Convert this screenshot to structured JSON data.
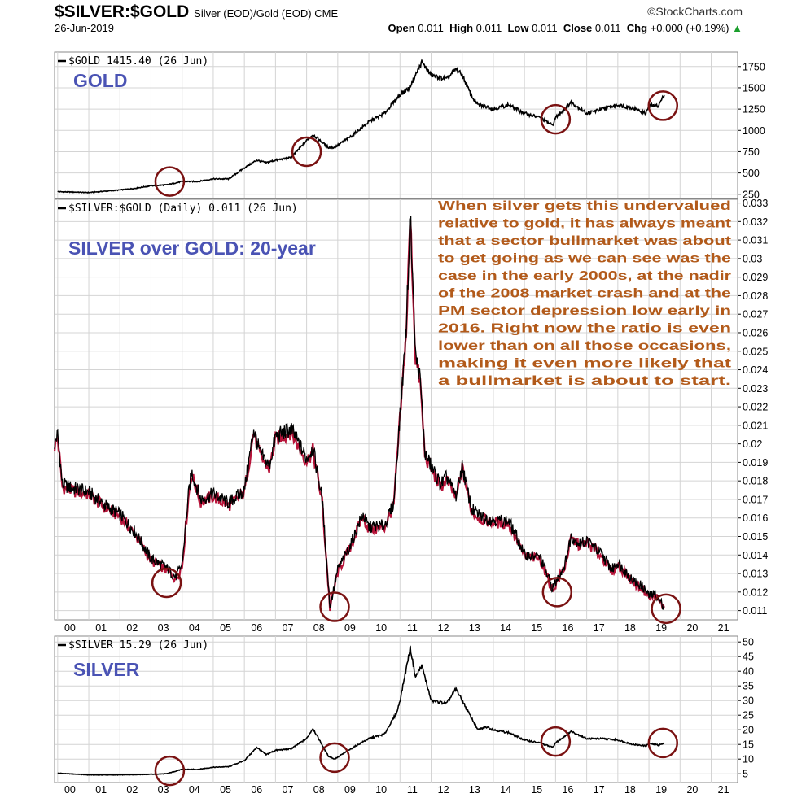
{
  "header": {
    "symbol": "$SILVER:$GOLD",
    "description": "Silver (EOD)/Gold (EOD) CME",
    "date": "26-Jun-2019",
    "brand": "©StockCharts.com",
    "ohlc": {
      "open_label": "Open",
      "open": "0.011",
      "high_label": "High",
      "high": "0.011",
      "low_label": "Low",
      "low": "0.011",
      "close_label": "Close",
      "close": "0.011",
      "chg_label": "Chg",
      "chg": "+0.000 (+0.19%)",
      "chg_icon": "triangle-up-icon"
    }
  },
  "colors": {
    "line": "#000000",
    "down": "#b8143a",
    "circle": "#7a1212",
    "label": "#4a53b4",
    "annotation": "#b25a1a",
    "grid": "#d4d4d4"
  },
  "chart_data": [
    {
      "type": "line",
      "legend": "$GOLD 1415.40 (26 Jun)",
      "label": "GOLD",
      "ylim": [
        200,
        1920
      ],
      "y_ticks": [
        250,
        500,
        750,
        1000,
        1250,
        1500,
        1750
      ],
      "x": [
        2000,
        2001,
        2002,
        2002.5,
        2003,
        2003.5,
        2004,
        2004.5,
        2005,
        2005.5,
        2006,
        2006.4,
        2006.7,
        2007,
        2007.5,
        2008,
        2008.2,
        2008.7,
        2008.9,
        2009.5,
        2010,
        2010.5,
        2011,
        2011.3,
        2011.7,
        2012,
        2012.5,
        2012.8,
        2013,
        2013.3,
        2013.5,
        2013.8,
        2014,
        2014.5,
        2015,
        2015.5,
        2015.9,
        2016,
        2016.5,
        2017,
        2017.5,
        2018,
        2018.5,
        2018.9,
        2019,
        2019.3,
        2019.49
      ],
      "values": [
        280,
        270,
        300,
        320,
        350,
        360,
        400,
        400,
        430,
        430,
        560,
        650,
        620,
        650,
        680,
        880,
        950,
        800,
        800,
        950,
        1100,
        1200,
        1420,
        1500,
        1800,
        1650,
        1600,
        1720,
        1650,
        1400,
        1300,
        1280,
        1250,
        1300,
        1200,
        1150,
        1060,
        1150,
        1330,
        1200,
        1250,
        1300,
        1260,
        1200,
        1290,
        1290,
        1415.4
      ],
      "circles": [
        {
          "x": 2003.6,
          "y": 400
        },
        {
          "x": 2008.0,
          "y": 750
        },
        {
          "x": 2016.0,
          "y": 1130
        },
        {
          "x": 2019.45,
          "y": 1290
        }
      ]
    },
    {
      "type": "line",
      "legend": "$SILVER:$GOLD (Daily) 0.011 (26 Jun)",
      "label": "SILVER over GOLD: 20-year",
      "ylim": [
        0.0105,
        0.0332
      ],
      "y_ticks": [
        0.011,
        0.012,
        0.013,
        0.014,
        0.015,
        0.016,
        0.017,
        0.018,
        0.019,
        0.02,
        0.021,
        0.022,
        0.023,
        0.024,
        0.025,
        0.026,
        0.027,
        0.028,
        0.029,
        0.03,
        0.031,
        0.032,
        0.033
      ],
      "x": [
        1999.9,
        2000.0,
        2000.15,
        2000.5,
        2001,
        2001.5,
        2002,
        2002.5,
        2003,
        2003.5,
        2003.8,
        2004.0,
        2004.2,
        2004.3,
        2004.6,
        2005,
        2005.5,
        2006,
        2006.3,
        2006.5,
        2006.8,
        2007,
        2007.5,
        2008,
        2008.2,
        2008.5,
        2008.75,
        2008.9,
        2009,
        2009.4,
        2009.8,
        2010,
        2010.5,
        2010.8,
        2011,
        2011.2,
        2011.33,
        2011.5,
        2011.65,
        2011.8,
        2012,
        2012.3,
        2012.5,
        2012.8,
        2013,
        2013.3,
        2013.5,
        2013.7,
        2014,
        2014.5,
        2014.8,
        2015,
        2015.5,
        2015.9,
        2016.0,
        2016.3,
        2016.5,
        2016.8,
        2017,
        2017.5,
        2017.8,
        2018,
        2018.5,
        2018.8,
        2019,
        2019.2,
        2019.49
      ],
      "values": [
        0.02,
        0.0205,
        0.0178,
        0.0176,
        0.0174,
        0.0167,
        0.0162,
        0.0152,
        0.0138,
        0.0133,
        0.0128,
        0.0135,
        0.0172,
        0.0185,
        0.017,
        0.0173,
        0.0168,
        0.0175,
        0.0208,
        0.0195,
        0.0188,
        0.0204,
        0.0208,
        0.0192,
        0.0198,
        0.017,
        0.0112,
        0.0124,
        0.0132,
        0.0145,
        0.0162,
        0.0155,
        0.0156,
        0.0168,
        0.0215,
        0.0262,
        0.0325,
        0.0248,
        0.0235,
        0.0195,
        0.0188,
        0.0178,
        0.0182,
        0.0172,
        0.0188,
        0.0165,
        0.0162,
        0.016,
        0.0159,
        0.0158,
        0.0148,
        0.014,
        0.0139,
        0.0122,
        0.0125,
        0.0135,
        0.015,
        0.0146,
        0.0148,
        0.014,
        0.0132,
        0.0136,
        0.0126,
        0.0123,
        0.0118,
        0.0119,
        0.0112
      ],
      "circles": [
        {
          "x": 2003.5,
          "y": 0.0125
        },
        {
          "x": 2008.9,
          "y": 0.0112
        },
        {
          "x": 2016.05,
          "y": 0.012
        },
        {
          "x": 2019.55,
          "y": 0.0111
        }
      ],
      "annotation": [
        "When silver gets this undervalued",
        "relative to gold, it has always meant",
        "that a sector bullmarket was about",
        "to get going as we can see was the",
        "case in the early 2000s, at the nadir",
        "of the 2008 market crash and at the",
        "PM sector depression low early in",
        "2016. Right now the ratio is even",
        "lower than on all those occasions,",
        "making it even more likely that",
        "a bullmarket is about to start."
      ]
    },
    {
      "type": "line",
      "legend": "$SILVER 15.29 (26 Jun)",
      "label": "SILVER",
      "ylim": [
        2,
        52
      ],
      "y_ticks": [
        5,
        10,
        15,
        20,
        25,
        30,
        35,
        40,
        45,
        50
      ],
      "x": [
        2000,
        2001,
        2002,
        2003,
        2003.5,
        2004,
        2004.5,
        2005,
        2005.5,
        2006,
        2006.4,
        2006.7,
        2007,
        2007.5,
        2008,
        2008.2,
        2008.7,
        2008.9,
        2009.5,
        2010,
        2010.5,
        2010.9,
        2011,
        2011.33,
        2011.5,
        2011.7,
        2012,
        2012.5,
        2012.8,
        2013,
        2013.3,
        2013.5,
        2013.8,
        2014,
        2014.5,
        2015,
        2015.5,
        2015.9,
        2016,
        2016.5,
        2017,
        2017.5,
        2018,
        2018.5,
        2018.9,
        2019,
        2019.3,
        2019.49
      ],
      "values": [
        5.2,
        4.6,
        4.6,
        4.8,
        5.0,
        6.5,
        6.5,
        7.2,
        7.4,
        9.5,
        14.0,
        11.5,
        13.0,
        13.5,
        17.0,
        20.5,
        11.0,
        10.0,
        14.0,
        17.0,
        18.5,
        26.0,
        30.0,
        48.0,
        38.0,
        42.0,
        30.0,
        29.0,
        34.0,
        30.0,
        24.0,
        20.0,
        21.0,
        20.0,
        19.0,
        16.5,
        15.5,
        14.0,
        15.5,
        19.5,
        17.0,
        17.0,
        16.5,
        15.0,
        14.5,
        15.3,
        14.8,
        15.29
      ],
      "circles": [
        {
          "x": 2003.6,
          "y": 6.0
        },
        {
          "x": 2008.9,
          "y": 10.5
        },
        {
          "x": 2016.0,
          "y": 16.0
        },
        {
          "x": 2019.45,
          "y": 15.5
        }
      ]
    }
  ],
  "x_axis": {
    "labels": [
      "00",
      "01",
      "02",
      "03",
      "04",
      "05",
      "06",
      "07",
      "08",
      "09",
      "10",
      "11",
      "12",
      "13",
      "14",
      "15",
      "16",
      "17",
      "18",
      "19",
      "20",
      "21"
    ],
    "xlim": [
      1999.9,
      2021.85
    ]
  }
}
